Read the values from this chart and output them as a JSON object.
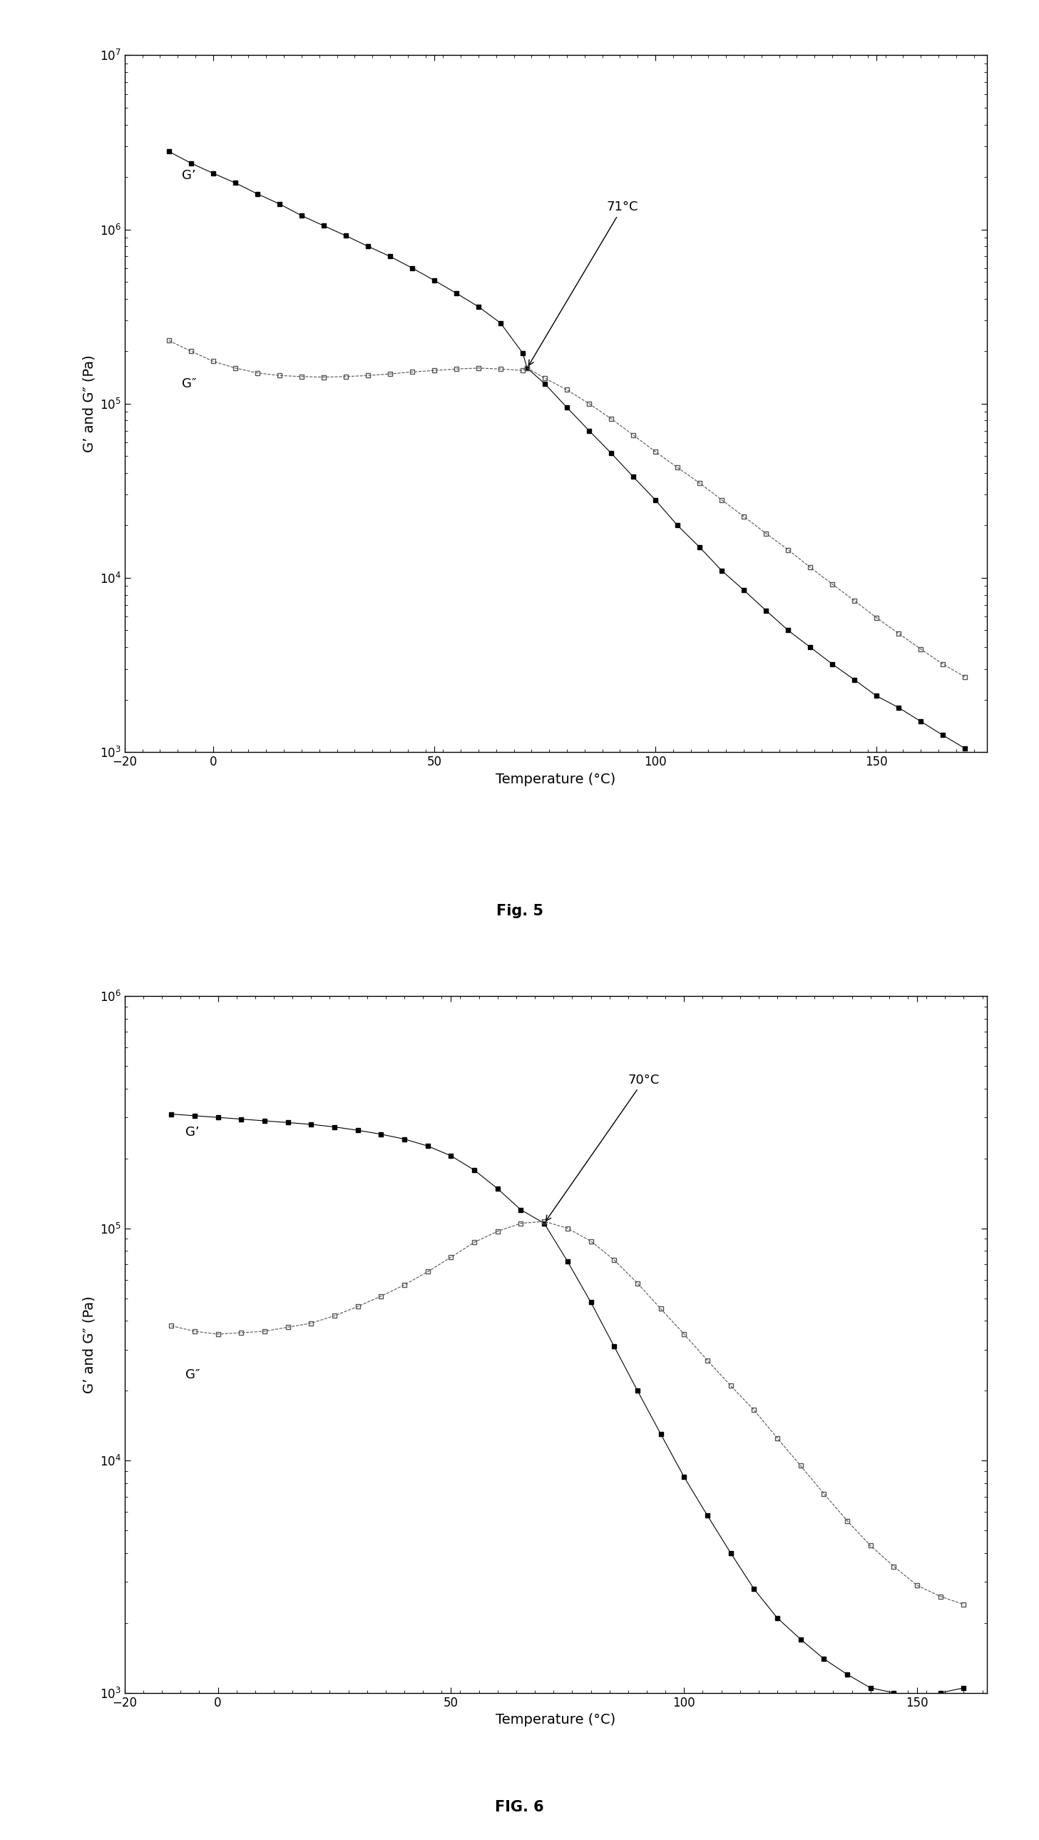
{
  "fig5": {
    "title": "Fig. 5",
    "title_bold": true,
    "xlabel": "Temperature (°C)",
    "ylabel": "G’ and G″ (Pa)",
    "xlim": [
      -15,
      175
    ],
    "ylim_log": [
      3,
      7
    ],
    "xticks": [
      -20,
      0,
      50,
      100,
      150
    ],
    "crossover_temp": 71,
    "crossover_label": "71°C",
    "Gprime_label": "G’",
    "Gdprime_label": "G″",
    "Gprime_x": [
      -10,
      -5,
      0,
      5,
      10,
      15,
      20,
      25,
      30,
      35,
      40,
      45,
      50,
      55,
      60,
      65,
      70,
      71,
      75,
      80,
      85,
      90,
      95,
      100,
      105,
      110,
      115,
      120,
      125,
      130,
      135,
      140,
      145,
      150,
      155,
      160,
      165,
      170
    ],
    "Gprime_y": [
      2800000,
      2400000,
      2100000,
      1850000,
      1600000,
      1400000,
      1200000,
      1050000,
      920000,
      800000,
      700000,
      600000,
      510000,
      430000,
      360000,
      290000,
      195000,
      160000,
      130000,
      95000,
      70000,
      52000,
      38000,
      28000,
      20000,
      15000,
      11000,
      8500,
      6500,
      5000,
      4000,
      3200,
      2600,
      2100,
      1800,
      1500,
      1250,
      1050
    ],
    "Gdprime_x": [
      -10,
      -5,
      0,
      5,
      10,
      15,
      20,
      25,
      30,
      35,
      40,
      45,
      50,
      55,
      60,
      65,
      70,
      71,
      75,
      80,
      85,
      90,
      95,
      100,
      105,
      110,
      115,
      120,
      125,
      130,
      135,
      140,
      145,
      150,
      155,
      160,
      165,
      170
    ],
    "Gdprime_y": [
      230000,
      200000,
      175000,
      160000,
      150000,
      145000,
      143000,
      142000,
      143000,
      145000,
      148000,
      152000,
      155000,
      158000,
      160000,
      158000,
      155000,
      160000,
      140000,
      120000,
      100000,
      82000,
      66000,
      53000,
      43000,
      35000,
      28000,
      22500,
      18000,
      14500,
      11500,
      9200,
      7400,
      5900,
      4800,
      3900,
      3200,
      2700
    ]
  },
  "fig6": {
    "title": "FIG. 6",
    "title_bold": true,
    "xlabel": "Temperature (°C)",
    "ylabel": "G’ and G″ (Pa)",
    "xlim": [
      -15,
      165
    ],
    "ylim_log": [
      3,
      6
    ],
    "xticks": [
      -20,
      0,
      50,
      100,
      150
    ],
    "crossover_temp": 70,
    "crossover_label": "70°C",
    "Gprime_label": "G’",
    "Gdprime_label": "G″",
    "Gprime_x": [
      -10,
      -5,
      0,
      5,
      10,
      15,
      20,
      25,
      30,
      35,
      40,
      45,
      50,
      55,
      60,
      65,
      70,
      75,
      80,
      85,
      90,
      95,
      100,
      105,
      110,
      115,
      120,
      125,
      130,
      135,
      140,
      145,
      150,
      155,
      160
    ],
    "Gprime_y": [
      310000,
      305000,
      300000,
      295000,
      290000,
      285000,
      280000,
      273000,
      264000,
      254000,
      242000,
      226000,
      205000,
      178000,
      148000,
      120000,
      105000,
      72000,
      48000,
      31000,
      20000,
      13000,
      8500,
      5800,
      4000,
      2800,
      2100,
      1700,
      1400,
      1200,
      1050,
      1000,
      950,
      1000,
      1050
    ],
    "Gdprime_x": [
      -10,
      -5,
      0,
      5,
      10,
      15,
      20,
      25,
      30,
      35,
      40,
      45,
      50,
      55,
      60,
      65,
      70,
      75,
      80,
      85,
      90,
      95,
      100,
      105,
      110,
      115,
      120,
      125,
      130,
      135,
      140,
      145,
      150,
      155,
      160
    ],
    "Gdprime_y": [
      38000,
      36000,
      35000,
      35500,
      36000,
      37500,
      39000,
      42000,
      46000,
      51000,
      57000,
      65000,
      75000,
      87000,
      97000,
      105000,
      107000,
      100000,
      88000,
      73000,
      58000,
      45000,
      35000,
      27000,
      21000,
      16500,
      12500,
      9500,
      7200,
      5500,
      4300,
      3500,
      2900,
      2600,
      2400
    ]
  }
}
